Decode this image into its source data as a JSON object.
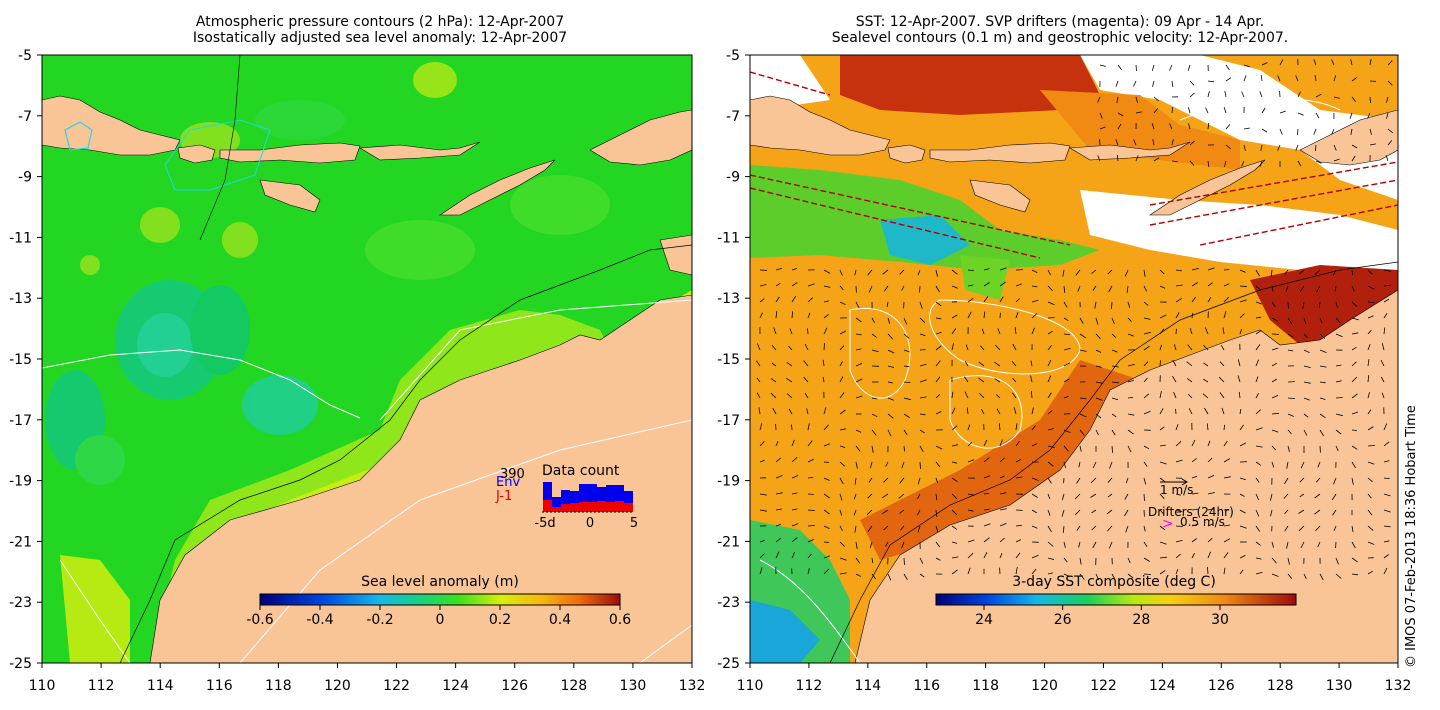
{
  "left_panel": {
    "title_line1": "Atmospheric pressure contours (2 hPa): 12-Apr-2007",
    "title_line2": "Isostatically adjusted sea level anomaly: 12-Apr-2007",
    "colorbar": {
      "label": "Sea level anomaly (m)",
      "ticks": [
        "-0.6",
        "-0.4",
        "-0.2",
        "0",
        "0.2",
        "0.4",
        "0.6"
      ]
    },
    "data_count": {
      "title": "Data count",
      "total": "390",
      "legend_env": "Env",
      "legend_j1": "J-1",
      "xticks": [
        "-5d",
        "0",
        "5"
      ],
      "env_color": "#0000ee",
      "j1_color": "#ee0000"
    }
  },
  "right_panel": {
    "title_line1": "SST: 12-Apr-2007. SVP drifters (magenta): 09 Apr - 14 Apr.",
    "title_line2": "Sealevel contours (0.1 m) and geostrophic velocity: 12-Apr-2007.",
    "colorbar": {
      "label": "3-day SST composite (deg C)",
      "ticks": [
        "24",
        "26",
        "28",
        "30"
      ]
    },
    "velocity_legend": "1 m/s",
    "drifter_legend_title": "Drifters (24hr)",
    "drifter_legend_value": "0.5 m/s",
    "drifter_symbol": ">",
    "drifter_color": "#ff00ff"
  },
  "axes": {
    "x_ticks": [
      "110",
      "112",
      "114",
      "116",
      "118",
      "120",
      "122",
      "124",
      "126",
      "128",
      "130",
      "132"
    ],
    "y_ticks": [
      "-5",
      "-7",
      "-9",
      "-11",
      "-13",
      "-15",
      "-17",
      "-19",
      "-21",
      "-23",
      "-25"
    ]
  },
  "credit": "© IMOS 07-Feb-2013 18:36 Hobart Time",
  "colors": {
    "land": "#f9c597",
    "ocean_left": "#22d622",
    "ocean_right": "#f5a417",
    "missing": "#ffffff"
  }
}
